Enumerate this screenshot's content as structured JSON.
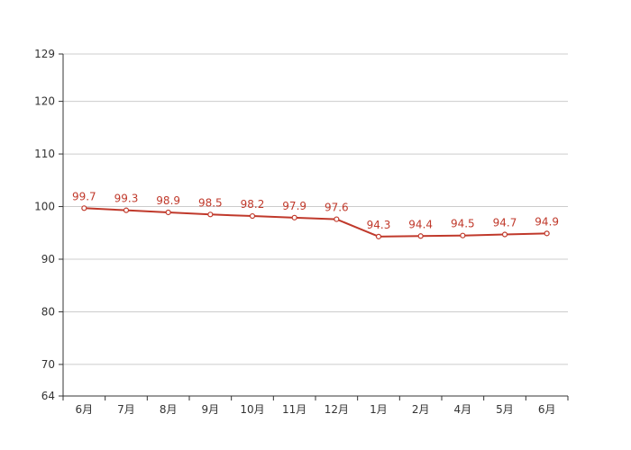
{
  "chart_data": {
    "type": "line",
    "title": "",
    "xlabel": "",
    "ylabel": "",
    "categories": [
      "6月",
      "7月",
      "8月",
      "9月",
      "10月",
      "11月",
      "12月",
      "1月",
      "2月",
      "4月",
      "5月",
      "6月"
    ],
    "series": [
      {
        "values": [
          99.7,
          99.3,
          98.9,
          98.5,
          98.2,
          97.9,
          97.6,
          94.3,
          94.4,
          94.5,
          94.7,
          94.9
        ],
        "color": "#c0392b"
      }
    ],
    "ylim": [
      64,
      129
    ],
    "yticks": [
      64,
      70,
      80,
      90,
      100,
      110,
      120,
      129
    ],
    "grid": true,
    "legend": "none",
    "data_labels": true,
    "marker": "hollow-circle"
  }
}
